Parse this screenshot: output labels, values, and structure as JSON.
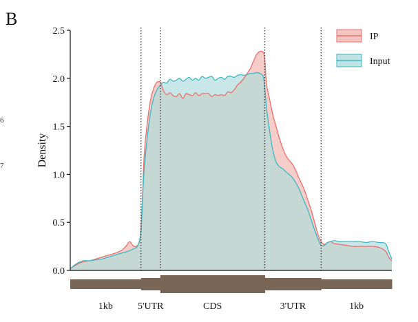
{
  "panel_label": "B",
  "margin_fragments": [
    "6",
    "7"
  ],
  "colors": {
    "ip_line": "#e8706e",
    "ip_fill": "#f4c4c0",
    "input_line": "#3bb8c4",
    "input_fill": "#bfe3e4",
    "overlap_fill": "#c5d8d4",
    "gene_bar": "#7a6656"
  },
  "chart_data": {
    "type": "area",
    "title": "",
    "xlabel": "",
    "ylabel": "Density",
    "ylim": [
      0,
      2.5
    ],
    "xlim": [
      0,
      100
    ],
    "yticks": [
      "0.0",
      "0.5",
      "1.0",
      "1.5",
      "2.0",
      "2.5"
    ],
    "legend_position": "top-right",
    "grid": false,
    "boundaries": [
      22,
      28,
      60.5,
      78
    ],
    "regions": [
      {
        "label": "1kb",
        "from": 0,
        "to": 22,
        "thickness": "thin"
      },
      {
        "label": "5'UTR",
        "from": 22,
        "to": 28,
        "thickness": "medium"
      },
      {
        "label": "CDS",
        "from": 28,
        "to": 60.5,
        "thickness": "thick"
      },
      {
        "label": "3'UTR",
        "from": 60.5,
        "to": 78,
        "thickness": "medium"
      },
      {
        "label": "1kb",
        "from": 78,
        "to": 100,
        "thickness": "thin"
      }
    ],
    "series": [
      {
        "name": "IP",
        "x": [
          0,
          2,
          4,
          6,
          8,
          10,
          12,
          14,
          16,
          17.5,
          18.5,
          19.5,
          20.5,
          21.5,
          22,
          22.5,
          23,
          24,
          25,
          26,
          27,
          28,
          28.5,
          29,
          30,
          31,
          32,
          33,
          34,
          35,
          36,
          37,
          38,
          39,
          40,
          41,
          42,
          43,
          44,
          45,
          46,
          47,
          48,
          49,
          50,
          51,
          52,
          53,
          54,
          55,
          56,
          57,
          58,
          59,
          60,
          60.5,
          61,
          62,
          63,
          64,
          65,
          66,
          67,
          68,
          69,
          70,
          71,
          72,
          73,
          74,
          75,
          76,
          77,
          78,
          79,
          80,
          81,
          82,
          84,
          86,
          88,
          90,
          92,
          94,
          96,
          98,
          99,
          100
        ],
        "y": [
          0.02,
          0.06,
          0.09,
          0.1,
          0.12,
          0.14,
          0.16,
          0.18,
          0.21,
          0.26,
          0.3,
          0.26,
          0.25,
          0.3,
          0.45,
          0.8,
          1.2,
          1.55,
          1.78,
          1.9,
          1.96,
          1.96,
          1.92,
          1.87,
          1.83,
          1.85,
          1.82,
          1.81,
          1.84,
          1.79,
          1.84,
          1.83,
          1.82,
          1.85,
          1.82,
          1.84,
          1.84,
          1.84,
          1.81,
          1.83,
          1.82,
          1.83,
          1.82,
          1.86,
          1.85,
          1.88,
          1.93,
          1.96,
          2.0,
          2.05,
          2.1,
          2.18,
          2.25,
          2.28,
          2.27,
          2.2,
          1.95,
          1.78,
          1.62,
          1.5,
          1.38,
          1.28,
          1.2,
          1.15,
          1.11,
          1.05,
          0.97,
          0.9,
          0.82,
          0.72,
          0.62,
          0.5,
          0.38,
          0.3,
          0.27,
          0.29,
          0.3,
          0.28,
          0.27,
          0.26,
          0.25,
          0.25,
          0.25,
          0.25,
          0.24,
          0.2,
          0.14,
          0.1
        ]
      },
      {
        "name": "Input",
        "x": [
          0,
          2,
          4,
          6,
          8,
          10,
          12,
          14,
          16,
          18,
          20,
          21,
          22,
          22.5,
          23,
          24,
          25,
          26,
          27,
          28,
          29,
          30,
          31,
          32,
          33,
          34,
          35,
          36,
          37,
          38,
          39,
          40,
          41,
          42,
          43,
          44,
          45,
          46,
          47,
          48,
          49,
          50,
          51,
          52,
          53,
          54,
          55,
          56,
          57,
          58,
          59,
          60,
          60.5,
          61,
          62,
          63,
          64,
          65,
          66,
          67,
          68,
          69,
          70,
          71,
          72,
          73,
          74,
          75,
          76,
          77,
          78,
          79,
          80,
          81,
          82,
          84,
          86,
          88,
          90,
          92,
          94,
          96,
          98,
          99,
          100
        ],
        "y": [
          0.02,
          0.07,
          0.1,
          0.1,
          0.11,
          0.12,
          0.14,
          0.16,
          0.18,
          0.2,
          0.23,
          0.26,
          0.4,
          0.75,
          1.05,
          1.4,
          1.65,
          1.8,
          1.88,
          1.93,
          1.96,
          1.95,
          1.99,
          1.97,
          1.98,
          2.0,
          1.97,
          1.99,
          2.01,
          1.98,
          2.0,
          1.98,
          2.02,
          2.0,
          2.01,
          2.02,
          1.98,
          2.0,
          2.01,
          1.99,
          2.02,
          2.02,
          2.01,
          2.03,
          2.04,
          2.03,
          2.04,
          2.05,
          2.05,
          2.06,
          2.05,
          2.02,
          1.9,
          1.7,
          1.45,
          1.25,
          1.13,
          1.08,
          1.06,
          1.03,
          1.0,
          0.97,
          0.92,
          0.86,
          0.78,
          0.7,
          0.62,
          0.52,
          0.42,
          0.33,
          0.26,
          0.26,
          0.29,
          0.3,
          0.31,
          0.3,
          0.3,
          0.3,
          0.3,
          0.29,
          0.3,
          0.29,
          0.28,
          0.2,
          0.12
        ]
      }
    ]
  }
}
